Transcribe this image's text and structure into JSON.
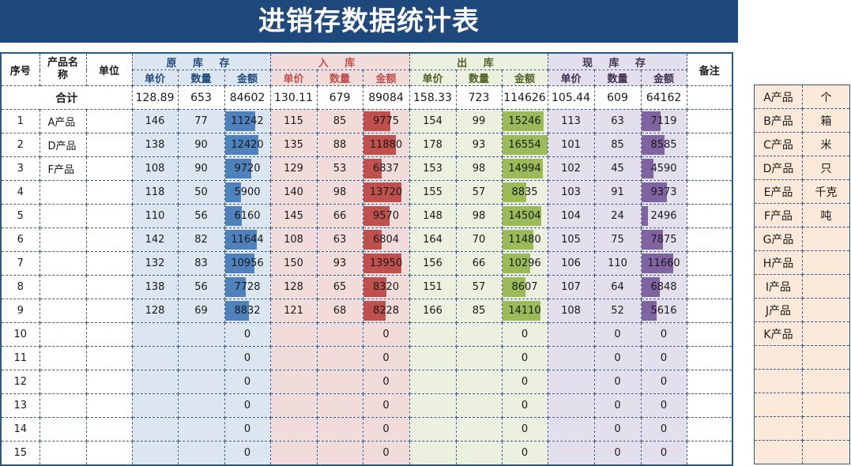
{
  "title": "进销存数据统计表",
  "headers": {
    "seq": "序号",
    "product_name": "产品名称",
    "unit": "单位",
    "remarks": "备注",
    "groups": [
      "原 库 存",
      "入  库",
      "出  库",
      "现 库 存"
    ],
    "sub": [
      "单价",
      "数量",
      "金额"
    ]
  },
  "totals": {
    "label": "合计",
    "values": [
      [
        "128.89",
        "653",
        "84602"
      ],
      [
        "130.11",
        "679",
        "89084"
      ],
      [
        "158.33",
        "723",
        "114626"
      ],
      [
        "105.44",
        "609",
        "64162"
      ]
    ]
  },
  "rows": [
    {
      "seq": "1",
      "name": "A产品",
      "unit": "",
      "g": [
        [
          "146",
          "77",
          "11242"
        ],
        [
          "115",
          "85",
          "9775"
        ],
        [
          "154",
          "99",
          "15246"
        ],
        [
          "113",
          "63",
          "7119"
        ]
      ]
    },
    {
      "seq": "2",
      "name": "D产品",
      "unit": "",
      "g": [
        [
          "138",
          "90",
          "12420"
        ],
        [
          "135",
          "88",
          "11880"
        ],
        [
          "178",
          "93",
          "16554"
        ],
        [
          "101",
          "85",
          "8585"
        ]
      ]
    },
    {
      "seq": "3",
      "name": "F产品",
      "unit": "",
      "g": [
        [
          "108",
          "90",
          "9720"
        ],
        [
          "129",
          "53",
          "6837"
        ],
        [
          "153",
          "98",
          "14994"
        ],
        [
          "102",
          "45",
          "4590"
        ]
      ]
    },
    {
      "seq": "4",
      "name": "",
      "unit": "",
      "g": [
        [
          "118",
          "50",
          "5900"
        ],
        [
          "140",
          "98",
          "13720"
        ],
        [
          "155",
          "57",
          "8835"
        ],
        [
          "103",
          "91",
          "9373"
        ]
      ]
    },
    {
      "seq": "5",
      "name": "",
      "unit": "",
      "g": [
        [
          "110",
          "56",
          "6160"
        ],
        [
          "145",
          "66",
          "9570"
        ],
        [
          "148",
          "98",
          "14504"
        ],
        [
          "104",
          "24",
          "2496"
        ]
      ]
    },
    {
      "seq": "6",
      "name": "",
      "unit": "",
      "g": [
        [
          "142",
          "82",
          "11644"
        ],
        [
          "108",
          "63",
          "6804"
        ],
        [
          "164",
          "70",
          "11480"
        ],
        [
          "105",
          "75",
          "7875"
        ]
      ]
    },
    {
      "seq": "7",
      "name": "",
      "unit": "",
      "g": [
        [
          "132",
          "83",
          "10956"
        ],
        [
          "150",
          "93",
          "13950"
        ],
        [
          "156",
          "66",
          "10296"
        ],
        [
          "106",
          "110",
          "11660"
        ]
      ]
    },
    {
      "seq": "8",
      "name": "",
      "unit": "",
      "g": [
        [
          "138",
          "56",
          "7728"
        ],
        [
          "128",
          "65",
          "8320"
        ],
        [
          "151",
          "57",
          "8607"
        ],
        [
          "107",
          "64",
          "6848"
        ]
      ]
    },
    {
      "seq": "9",
      "name": "",
      "unit": "",
      "g": [
        [
          "128",
          "69",
          "8832"
        ],
        [
          "121",
          "68",
          "8228"
        ],
        [
          "166",
          "85",
          "14110"
        ],
        [
          "108",
          "52",
          "5616"
        ]
      ]
    },
    {
      "seq": "10",
      "name": "",
      "unit": "",
      "g": [
        [
          "",
          "",
          "0"
        ],
        [
          "",
          "",
          "0"
        ],
        [
          "",
          "",
          "0"
        ],
        [
          "",
          "0",
          "0"
        ]
      ]
    },
    {
      "seq": "11",
      "name": "",
      "unit": "",
      "g": [
        [
          "",
          "",
          "0"
        ],
        [
          "",
          "",
          "0"
        ],
        [
          "",
          "",
          "0"
        ],
        [
          "",
          "0",
          "0"
        ]
      ]
    },
    {
      "seq": "12",
      "name": "",
      "unit": "",
      "g": [
        [
          "",
          "",
          "0"
        ],
        [
          "",
          "",
          "0"
        ],
        [
          "",
          "",
          "0"
        ],
        [
          "",
          "0",
          "0"
        ]
      ]
    },
    {
      "seq": "13",
      "name": "",
      "unit": "",
      "g": [
        [
          "",
          "",
          "0"
        ],
        [
          "",
          "",
          "0"
        ],
        [
          "",
          "",
          "0"
        ],
        [
          "",
          "0",
          "0"
        ]
      ]
    },
    {
      "seq": "14",
      "name": "",
      "unit": "",
      "g": [
        [
          "",
          "",
          "0"
        ],
        [
          "",
          "",
          "0"
        ],
        [
          "",
          "",
          "0"
        ],
        [
          "",
          "0",
          "0"
        ]
      ]
    },
    {
      "seq": "15",
      "name": "",
      "unit": "",
      "g": [
        [
          "",
          "",
          "0"
        ],
        [
          "",
          "",
          "0"
        ],
        [
          "",
          "",
          "0"
        ],
        [
          "",
          "0",
          "0"
        ]
      ]
    }
  ],
  "bar_scale_max": 16554,
  "side_list": [
    {
      "product": "A产品",
      "unit": "个"
    },
    {
      "product": "B产品",
      "unit": "箱"
    },
    {
      "product": "C产品",
      "unit": "米"
    },
    {
      "product": "D产品",
      "unit": "只"
    },
    {
      "product": "E产品",
      "unit": "千克"
    },
    {
      "product": "F产品",
      "unit": "吨"
    },
    {
      "product": "G产品",
      "unit": ""
    },
    {
      "product": "H产品",
      "unit": ""
    },
    {
      "product": "I产品",
      "unit": ""
    },
    {
      "product": "J产品",
      "unit": ""
    },
    {
      "product": "K产品",
      "unit": ""
    },
    {
      "product": "",
      "unit": ""
    },
    {
      "product": "",
      "unit": ""
    },
    {
      "product": "",
      "unit": ""
    },
    {
      "product": "",
      "unit": ""
    },
    {
      "product": "",
      "unit": ""
    }
  ],
  "colors": {
    "title_bg": "#1f497d",
    "orig_bg": "#dce6f1",
    "orig_bar": "#4f81bd",
    "in_bg": "#f2dcdb",
    "in_bar": "#c0504d",
    "out_bg": "#ebf1de",
    "out_bar": "#9bbb59",
    "cur_bg": "#e4dfec",
    "cur_bar": "#8064a2",
    "side_bg": "#fde9d9"
  }
}
